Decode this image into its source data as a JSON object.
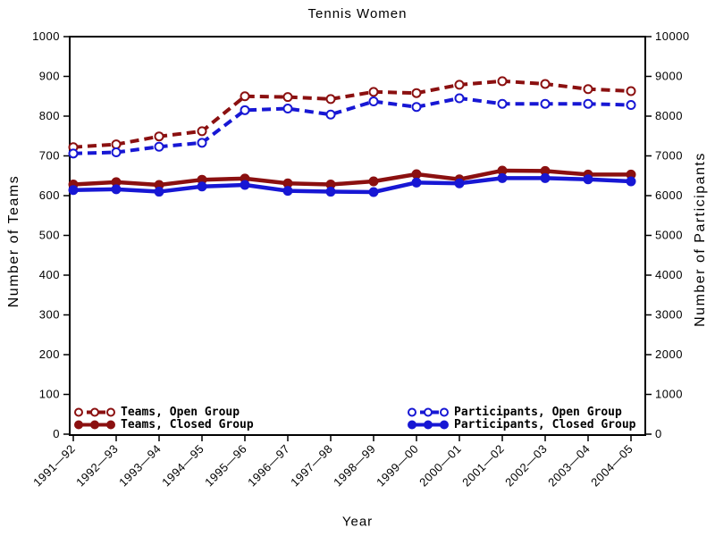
{
  "chart_data": {
    "type": "line",
    "title": "Tennis Women",
    "xlabel": "Year",
    "ylabel_left": "Number of Teams",
    "ylabel_right": "Number of Participants",
    "grid": false,
    "legend_position": "inside-bottom",
    "x_categories": [
      "1991—92",
      "1992—93",
      "1993—94",
      "1994—95",
      "1995—96",
      "1996—97",
      "1997—98",
      "1998—99",
      "1999—00",
      "2000—01",
      "2001—02",
      "2002—03",
      "2003—04",
      "2004—05"
    ],
    "y_axis_left": {
      "min": 0,
      "max": 1000,
      "step": 100
    },
    "y_axis_right": {
      "min": 0,
      "max": 10000,
      "step": 1000
    },
    "colors": {
      "teams": "#8b1010",
      "participants": "#1717d4"
    },
    "series": [
      {
        "name": "Teams, Open Group",
        "axis": "left",
        "color": "#8b1010",
        "line": "dashed",
        "marker": "open",
        "values": [
          722,
          729,
          749,
          762,
          850,
          848,
          843,
          861,
          858,
          879,
          888,
          881,
          868,
          863
        ]
      },
      {
        "name": "Teams, Closed Group",
        "axis": "left",
        "color": "#8b1010",
        "line": "solid",
        "marker": "filled",
        "values": [
          628,
          634,
          627,
          640,
          643,
          631,
          628,
          636,
          654,
          641,
          663,
          662,
          653,
          653
        ]
      },
      {
        "name": "Participants, Open Group",
        "axis": "right",
        "color": "#1717d4",
        "line": "dashed",
        "marker": "open",
        "values": [
          7060,
          7090,
          7230,
          7330,
          8150,
          8190,
          8040,
          8370,
          8230,
          8450,
          8310,
          8310,
          8310,
          8280
        ]
      },
      {
        "name": "Participants, Closed Group",
        "axis": "right",
        "color": "#1717d4",
        "line": "solid",
        "marker": "filled",
        "values": [
          6140,
          6160,
          6100,
          6230,
          6270,
          6120,
          6100,
          6090,
          6330,
          6310,
          6440,
          6440,
          6410,
          6360
        ]
      }
    ]
  }
}
